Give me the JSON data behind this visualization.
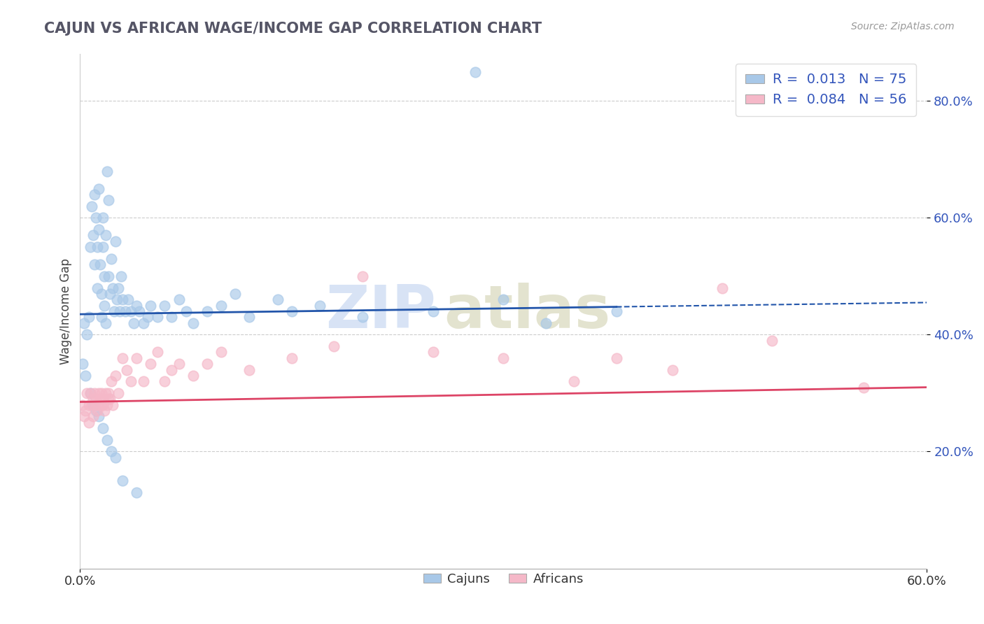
{
  "title": "CAJUN VS AFRICAN WAGE/INCOME GAP CORRELATION CHART",
  "source": "Source: ZipAtlas.com",
  "ylabel": "Wage/Income Gap",
  "legend_labels": [
    "Cajuns",
    "Africans"
  ],
  "legend_r": [
    "0.013",
    "0.084"
  ],
  "legend_n": [
    "75",
    "56"
  ],
  "cajun_color": "#a8c8e8",
  "african_color": "#f5b8c8",
  "cajun_line_color": "#2255aa",
  "african_line_color": "#dd4466",
  "xlim": [
    0.0,
    0.6
  ],
  "ylim": [
    0.0,
    0.88
  ],
  "yticks": [
    0.2,
    0.4,
    0.6,
    0.8
  ],
  "ytick_labels": [
    "20.0%",
    "40.0%",
    "60.0%",
    "80.0%"
  ],
  "xtick_labels": [
    "0.0%",
    "60.0%"
  ],
  "watermark_zip": "ZIP",
  "watermark_atlas": "atlas",
  "cajun_x": [
    0.003,
    0.005,
    0.006,
    0.007,
    0.008,
    0.009,
    0.01,
    0.01,
    0.011,
    0.012,
    0.012,
    0.013,
    0.013,
    0.014,
    0.015,
    0.015,
    0.016,
    0.016,
    0.017,
    0.017,
    0.018,
    0.018,
    0.019,
    0.02,
    0.02,
    0.021,
    0.022,
    0.023,
    0.024,
    0.025,
    0.026,
    0.027,
    0.028,
    0.029,
    0.03,
    0.032,
    0.034,
    0.036,
    0.038,
    0.04,
    0.042,
    0.045,
    0.048,
    0.05,
    0.055,
    0.06,
    0.065,
    0.07,
    0.075,
    0.08,
    0.09,
    0.1,
    0.11,
    0.12,
    0.14,
    0.15,
    0.17,
    0.2,
    0.25,
    0.28,
    0.3,
    0.33,
    0.38,
    0.002,
    0.004,
    0.007,
    0.009,
    0.011,
    0.013,
    0.016,
    0.019,
    0.022,
    0.025,
    0.03,
    0.04
  ],
  "cajun_y": [
    0.42,
    0.4,
    0.43,
    0.55,
    0.62,
    0.57,
    0.64,
    0.52,
    0.6,
    0.55,
    0.48,
    0.65,
    0.58,
    0.52,
    0.47,
    0.43,
    0.6,
    0.55,
    0.5,
    0.45,
    0.57,
    0.42,
    0.68,
    0.63,
    0.5,
    0.47,
    0.53,
    0.48,
    0.44,
    0.56,
    0.46,
    0.48,
    0.44,
    0.5,
    0.46,
    0.44,
    0.46,
    0.44,
    0.42,
    0.45,
    0.44,
    0.42,
    0.43,
    0.45,
    0.43,
    0.45,
    0.43,
    0.46,
    0.44,
    0.42,
    0.44,
    0.45,
    0.47,
    0.43,
    0.46,
    0.44,
    0.45,
    0.43,
    0.44,
    0.85,
    0.46,
    0.42,
    0.44,
    0.35,
    0.33,
    0.3,
    0.28,
    0.27,
    0.26,
    0.24,
    0.22,
    0.2,
    0.19,
    0.15,
    0.13
  ],
  "african_x": [
    0.002,
    0.004,
    0.005,
    0.006,
    0.007,
    0.008,
    0.009,
    0.01,
    0.01,
    0.011,
    0.012,
    0.013,
    0.014,
    0.015,
    0.015,
    0.016,
    0.017,
    0.018,
    0.019,
    0.02,
    0.021,
    0.022,
    0.023,
    0.025,
    0.027,
    0.03,
    0.033,
    0.036,
    0.04,
    0.045,
    0.05,
    0.055,
    0.06,
    0.065,
    0.07,
    0.08,
    0.09,
    0.1,
    0.12,
    0.15,
    0.18,
    0.2,
    0.25,
    0.3,
    0.35,
    0.38,
    0.42,
    0.455,
    0.49,
    0.555,
    0.003,
    0.006,
    0.009,
    0.012,
    0.016,
    0.02
  ],
  "african_y": [
    0.28,
    0.27,
    0.3,
    0.28,
    0.3,
    0.28,
    0.29,
    0.28,
    0.3,
    0.29,
    0.28,
    0.3,
    0.29,
    0.28,
    0.3,
    0.29,
    0.27,
    0.3,
    0.28,
    0.3,
    0.29,
    0.32,
    0.28,
    0.33,
    0.3,
    0.36,
    0.34,
    0.32,
    0.36,
    0.32,
    0.35,
    0.37,
    0.32,
    0.34,
    0.35,
    0.33,
    0.35,
    0.37,
    0.34,
    0.36,
    0.38,
    0.5,
    0.37,
    0.36,
    0.32,
    0.36,
    0.34,
    0.48,
    0.39,
    0.31,
    0.26,
    0.25,
    0.26,
    0.27,
    0.28,
    0.29
  ]
}
